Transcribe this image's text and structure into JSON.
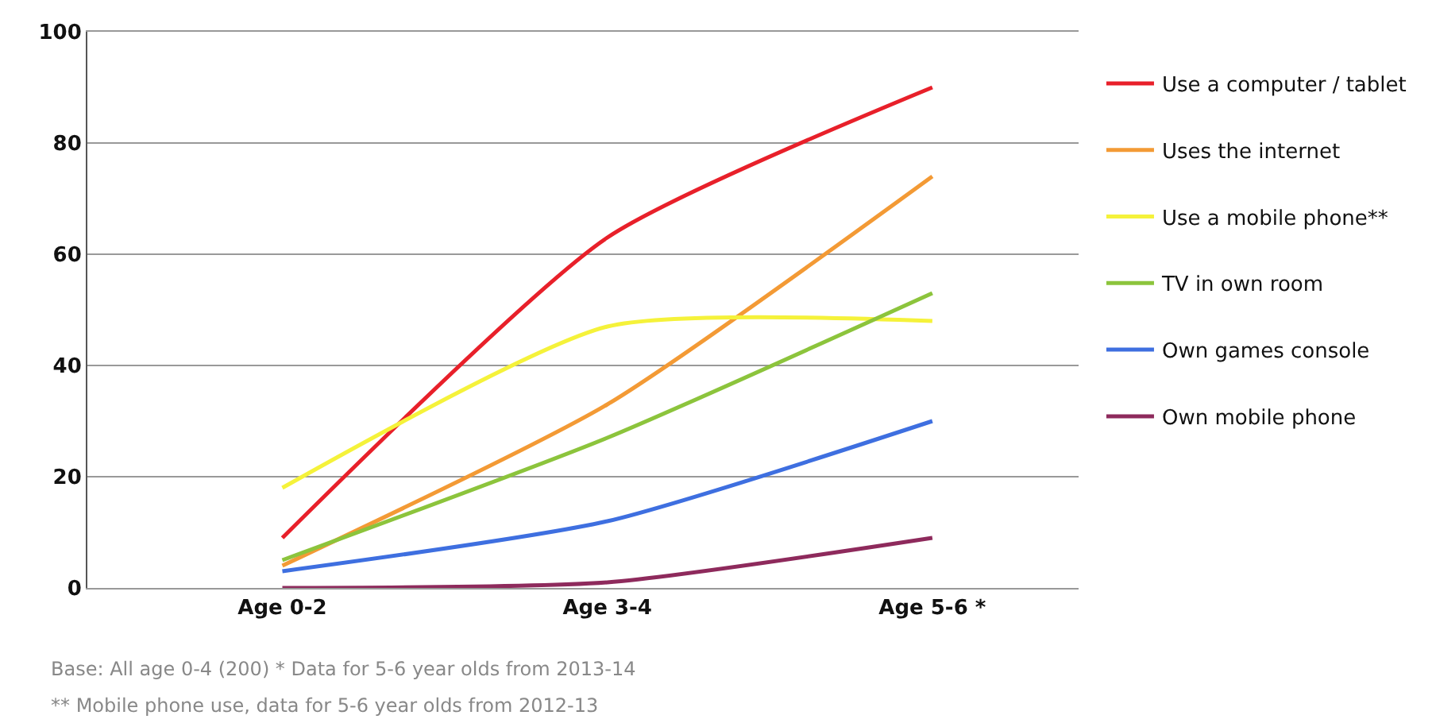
{
  "chart_data": {
    "type": "line",
    "categories": [
      "Age 0-2",
      "Age 3-4",
      "Age 5-6 *"
    ],
    "series": [
      {
        "name": "Use a computer / tablet",
        "color": "#e8202a",
        "values": [
          9,
          63,
          90
        ]
      },
      {
        "name": "Uses the internet",
        "color": "#f39a35",
        "values": [
          4,
          33,
          74
        ]
      },
      {
        "name": "Use a mobile phone**",
        "color": "#f5f23a",
        "values": [
          18,
          47,
          48
        ]
      },
      {
        "name": "TV in own room",
        "color": "#8cc43c",
        "values": [
          5,
          27,
          53
        ]
      },
      {
        "name": "Own games console",
        "color": "#3e6fe0",
        "values": [
          3,
          12,
          30
        ]
      },
      {
        "name": "Own mobile phone",
        "color": "#8e2a5c",
        "values": [
          0,
          1,
          9
        ]
      }
    ],
    "ylim": [
      0,
      100
    ],
    "yticks": [
      0,
      20,
      40,
      60,
      80,
      100
    ],
    "grid": "y",
    "legend": "right",
    "marker": "none",
    "line_style": "solid",
    "annotations": [
      "Base: All age 0-4 (200) * Data for 5-6 year olds from 2013-14",
      "** Mobile phone use, data for 5-6 year olds from 2012-13"
    ]
  }
}
